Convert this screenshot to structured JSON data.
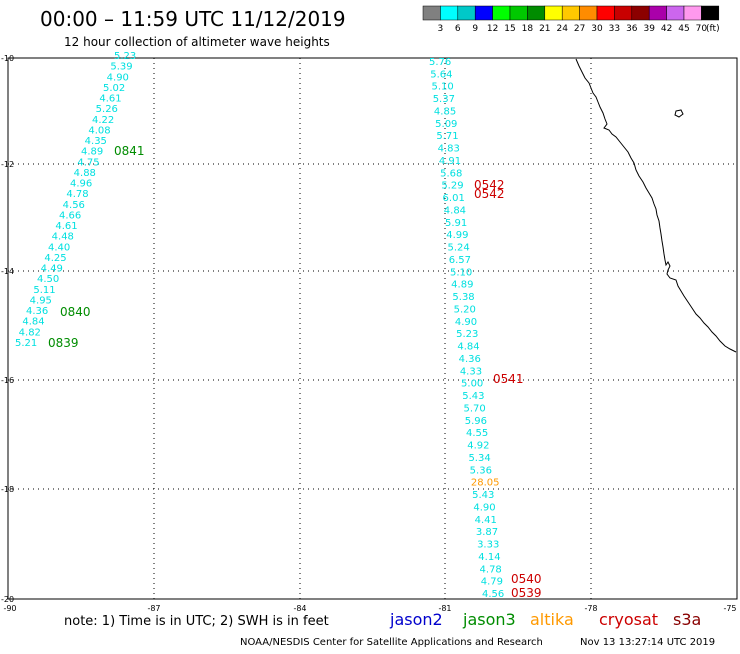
{
  "header": {
    "title": "00:00 – 11:59 UTC 11/12/2019",
    "subtitle": "12 hour collection of altimeter wave heights"
  },
  "legend": {
    "unit": "(ft)",
    "items": [
      {
        "label": "3",
        "color": "#808080"
      },
      {
        "label": "6",
        "color": "#00ffff"
      },
      {
        "label": "9",
        "color": "#00c8c8"
      },
      {
        "label": "12",
        "color": "#0000ff"
      },
      {
        "label": "15",
        "color": "#00ff00"
      },
      {
        "label": "18",
        "color": "#00c800"
      },
      {
        "label": "21",
        "color": "#008c00"
      },
      {
        "label": "24",
        "color": "#ffff00"
      },
      {
        "label": "27",
        "color": "#ffc800"
      },
      {
        "label": "30",
        "color": "#ff8c00"
      },
      {
        "label": "33",
        "color": "#ff0000"
      },
      {
        "label": "36",
        "color": "#c80000"
      },
      {
        "label": "39",
        "color": "#8c0000"
      },
      {
        "label": "42",
        "color": "#aa00aa"
      },
      {
        "label": "45",
        "color": "#cc66ee"
      },
      {
        "label": "70",
        "color": "#ff99ee"
      },
      {
        "label": "",
        "color": "#000000"
      }
    ]
  },
  "map": {
    "lat_ticks": [
      "-10",
      "-12",
      "-14",
      "-16",
      "-18",
      "-20"
    ],
    "lon_ticks": [
      "-90",
      "-87",
      "-84",
      "-81",
      "-78",
      "-75"
    ]
  },
  "tracks": [
    {
      "name": "left-track",
      "color": "#00e0e0",
      "values": [
        "5.23",
        "5.39",
        "4.90",
        "5.02",
        "4.61",
        "5.26",
        "4.22",
        "4.08",
        "4.35",
        "4.89",
        "4.75",
        "4.88",
        "4.96",
        "4.78",
        "4.56",
        "4.66",
        "4.61",
        "4.48",
        "4.40",
        "4.25",
        "4.49",
        "4.50",
        "5.11",
        "4.95",
        "4.36",
        "4.84",
        "4.82",
        "5.21"
      ]
    },
    {
      "name": "right-track",
      "color": "#00e0e0",
      "values": [
        "5.76",
        "5.64",
        "5.10",
        "5.37",
        "4.85",
        "5.09",
        "5.71",
        "4.83",
        "4.91",
        "5.68",
        "5.29",
        "6.01",
        "4.84",
        "5.91",
        "4.99",
        "5.24",
        "6.57",
        "5.10",
        "4.89",
        "5.38",
        "5.20",
        "4.90",
        "5.23",
        "4.84",
        "4.36",
        "4.33",
        "5.00",
        "5.43",
        "5.70",
        "5.96",
        "4.55",
        "4.92",
        "5.34",
        "5.36",
        "28.05",
        "5.43",
        "4.90",
        "4.41",
        "3.87",
        "3.33",
        "4.14",
        "4.78",
        "4.79",
        "4.56"
      ],
      "highlight": {
        "index": 34,
        "color": "#ff9900"
      }
    }
  ],
  "time_labels": [
    {
      "text": "0841",
      "color": "#008c00"
    },
    {
      "text": "0840",
      "color": "#008c00"
    },
    {
      "text": "0839",
      "color": "#008c00"
    },
    {
      "text": "0542",
      "color": "#cc0000"
    },
    {
      "text": "0542",
      "color": "#cc0000"
    },
    {
      "text": "0541",
      "color": "#cc0000"
    },
    {
      "text": "0540",
      "color": "#cc0000"
    },
    {
      "text": "0539",
      "color": "#cc0000"
    }
  ],
  "footer": {
    "note": "note: 1) Time is in UTC; 2) SWH is in feet",
    "satellites": [
      {
        "label": "jason2",
        "color": "#0000cc"
      },
      {
        "label": "jason3",
        "color": "#008c00"
      },
      {
        "label": "altika",
        "color": "#ff9900"
      },
      {
        "label": "cryosat",
        "color": "#cc0000"
      },
      {
        "label": "s3a",
        "color": "#880000"
      }
    ],
    "credit": "NOAA/NESDIS Center for Satellite Applications and Research",
    "timestamp": "Nov 13 13:27:14 UTC 2019"
  }
}
